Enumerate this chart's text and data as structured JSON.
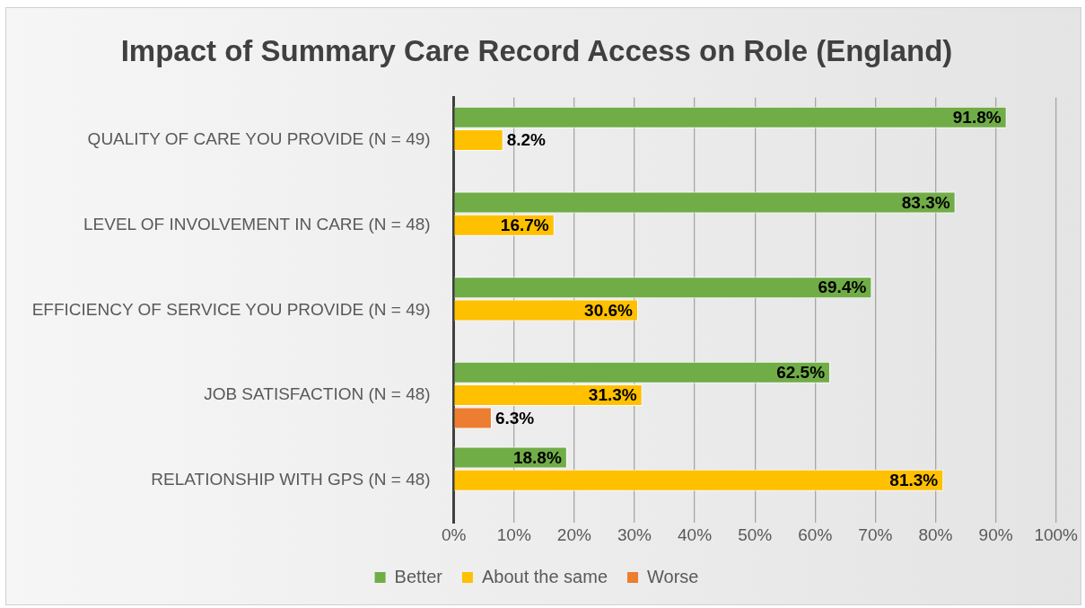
{
  "chart_data": {
    "type": "bar",
    "orientation": "horizontal",
    "title": "Impact of Summary Care Record Access on Role (England)",
    "categories": [
      "QUALITY OF CARE YOU PROVIDE (N = 49)",
      "LEVEL OF INVOLVEMENT IN CARE (N = 48)",
      "EFFICIENCY OF SERVICE YOU PROVIDE (N = 49)",
      "JOB SATISFACTION (N = 48)",
      "RELATIONSHIP WITH GPS (N = 48)"
    ],
    "series": [
      {
        "name": "Better",
        "color": "#70ad47",
        "values": [
          91.8,
          83.3,
          69.4,
          62.5,
          18.8
        ],
        "value_labels": [
          "91.8%",
          "83.3%",
          "69.4%",
          "62.5%",
          "18.8%"
        ]
      },
      {
        "name": "About the same",
        "color": "#ffc000",
        "values": [
          8.2,
          16.7,
          30.6,
          31.3,
          81.3
        ],
        "value_labels": [
          "8.2%",
          "16.7%",
          "30.6%",
          "31.3%",
          "81.3%"
        ]
      },
      {
        "name": "Worse",
        "color": "#ed7d31",
        "values": [
          null,
          null,
          null,
          6.3,
          null
        ],
        "value_labels": [
          null,
          null,
          null,
          "6.3%",
          null
        ]
      }
    ],
    "xlim": [
      0,
      100
    ],
    "xticks": [
      {
        "value": 0,
        "label": "0%"
      },
      {
        "value": 10,
        "label": "10%"
      },
      {
        "value": 20,
        "label": "20%"
      },
      {
        "value": 30,
        "label": "30%"
      },
      {
        "value": 40,
        "label": "40%"
      },
      {
        "value": 50,
        "label": "50%"
      },
      {
        "value": 60,
        "label": "60%"
      },
      {
        "value": 70,
        "label": "70%"
      },
      {
        "value": 80,
        "label": "80%"
      },
      {
        "value": 90,
        "label": "90%"
      },
      {
        "value": 100,
        "label": "100%"
      }
    ],
    "grid": "x",
    "legend": "bottom"
  }
}
